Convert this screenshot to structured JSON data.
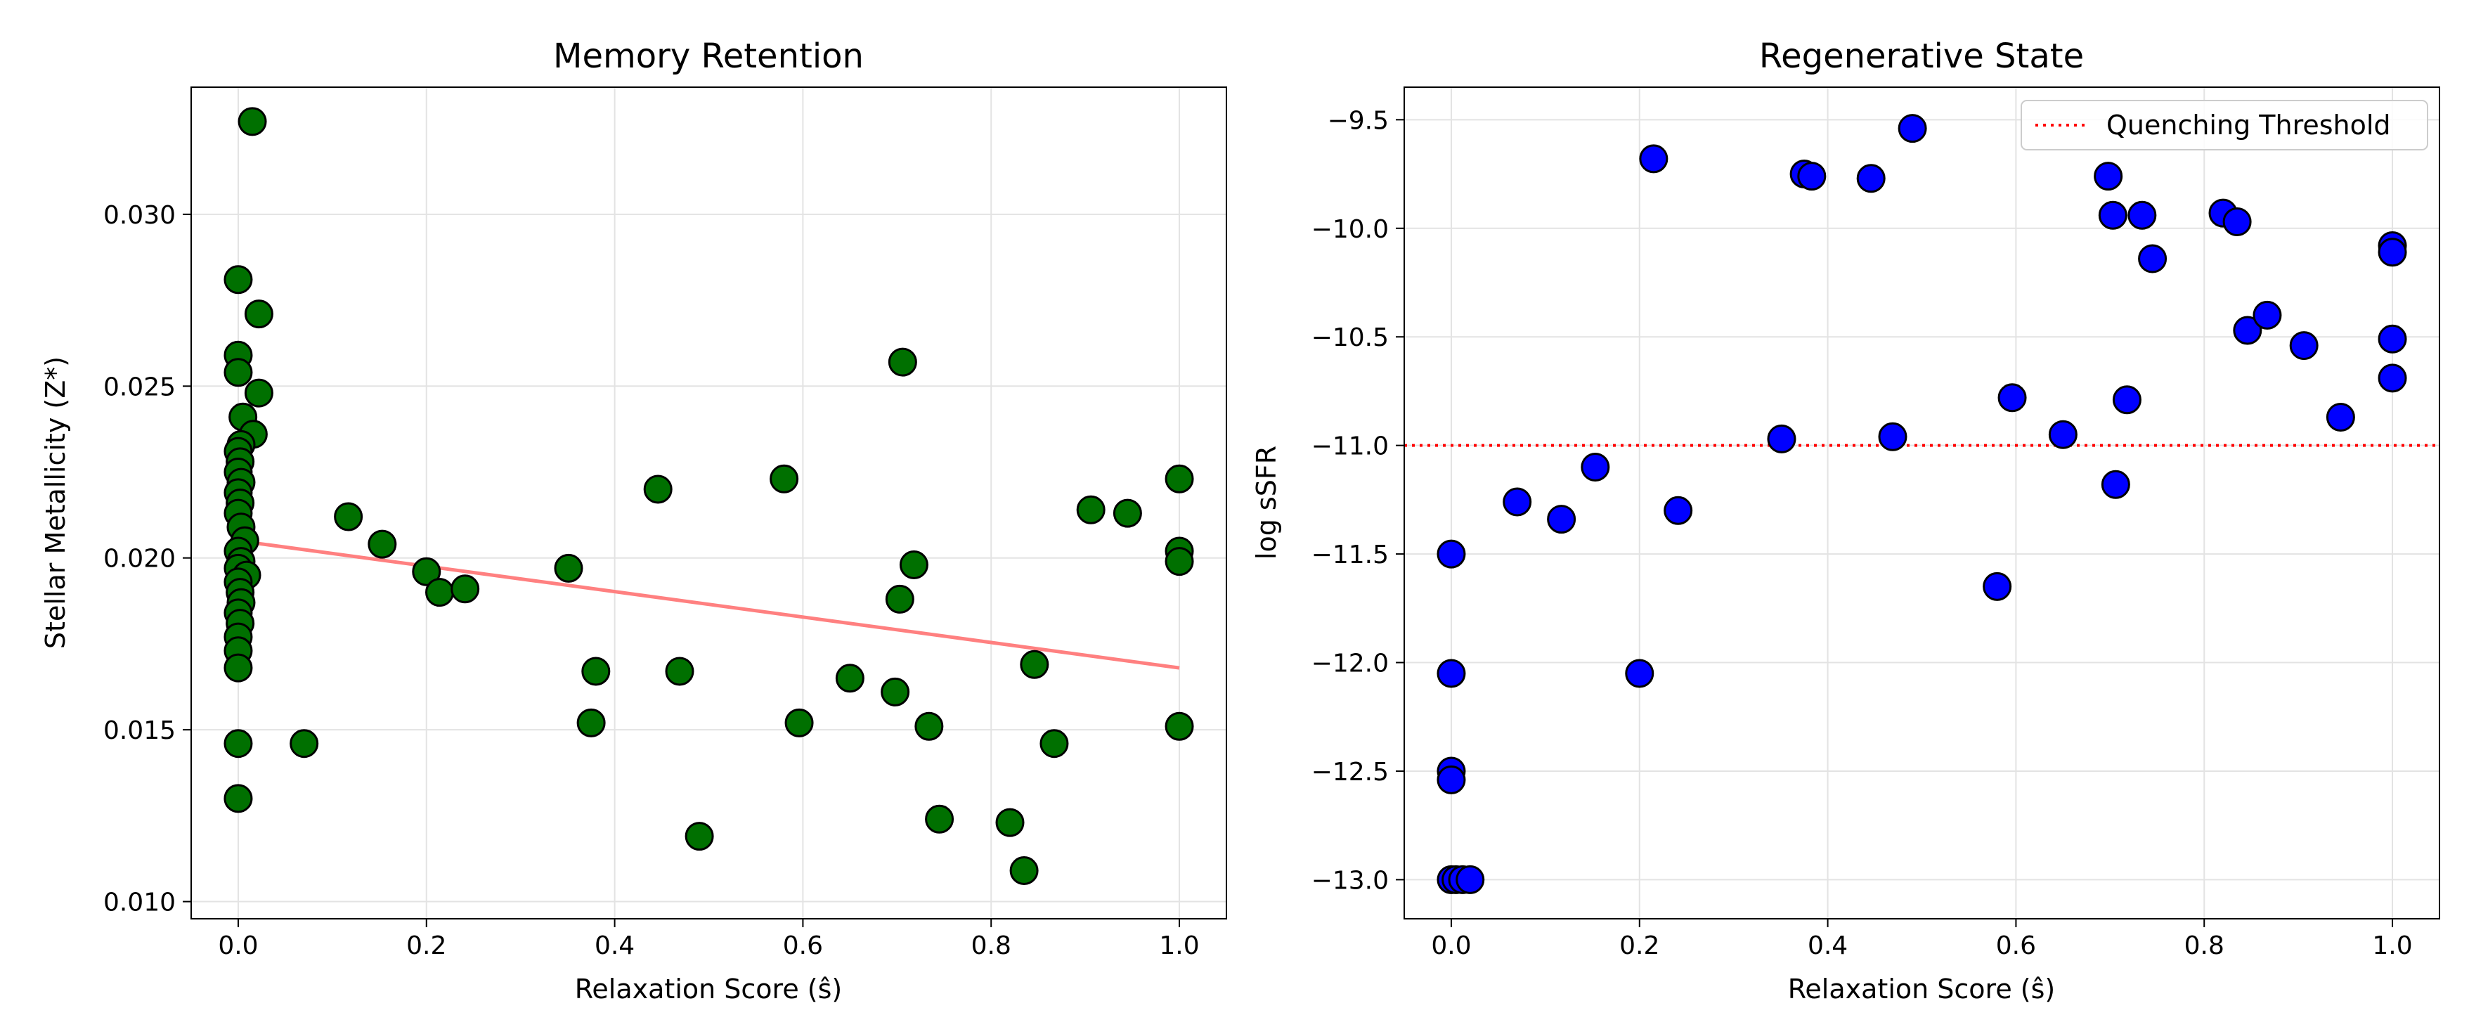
{
  "chart_data": [
    {
      "type": "scatter",
      "title": "Memory Retention",
      "xlabel": "Relaxation Score (ŝ)",
      "ylabel": "Stellar Metallicity (Z*)",
      "xlim": [
        -0.05,
        1.05
      ],
      "ylim": [
        0.0095,
        0.0337
      ],
      "xticks": [
        0.0,
        0.2,
        0.4,
        0.6,
        0.8,
        1.0
      ],
      "xtick_labels": [
        "0.0",
        "0.2",
        "0.4",
        "0.6",
        "0.8",
        "1.0"
      ],
      "yticks": [
        0.01,
        0.015,
        0.02,
        0.025,
        0.03
      ],
      "ytick_labels": [
        "0.010",
        "0.015",
        "0.020",
        "0.025",
        "0.030"
      ],
      "grid": true,
      "point_color": "#007000",
      "edge_color": "#000000",
      "trend_color": "#ff8080",
      "trend_line": {
        "x": [
          0.0,
          1.0
        ],
        "y": [
          0.0205,
          0.0168
        ]
      },
      "points": [
        {
          "x": 0.015,
          "y": 0.0327
        },
        {
          "x": 0.0,
          "y": 0.0281
        },
        {
          "x": 0.022,
          "y": 0.0271
        },
        {
          "x": 0.0,
          "y": 0.0259
        },
        {
          "x": 0.0,
          "y": 0.0254
        },
        {
          "x": 0.022,
          "y": 0.0248
        },
        {
          "x": 0.005,
          "y": 0.0241
        },
        {
          "x": 0.016,
          "y": 0.0236
        },
        {
          "x": 0.003,
          "y": 0.0233
        },
        {
          "x": 0.0,
          "y": 0.0231
        },
        {
          "x": 0.002,
          "y": 0.0228
        },
        {
          "x": 0.0,
          "y": 0.0225
        },
        {
          "x": 0.003,
          "y": 0.0222
        },
        {
          "x": 0.0,
          "y": 0.0219
        },
        {
          "x": 0.002,
          "y": 0.0216
        },
        {
          "x": 0.0,
          "y": 0.0213
        },
        {
          "x": 0.003,
          "y": 0.0209
        },
        {
          "x": 0.007,
          "y": 0.0205
        },
        {
          "x": 0.0,
          "y": 0.0202
        },
        {
          "x": 0.003,
          "y": 0.0199
        },
        {
          "x": 0.0,
          "y": 0.0197
        },
        {
          "x": 0.009,
          "y": 0.0195
        },
        {
          "x": 0.0,
          "y": 0.0193
        },
        {
          "x": 0.002,
          "y": 0.019
        },
        {
          "x": 0.003,
          "y": 0.0187
        },
        {
          "x": 0.0,
          "y": 0.0184
        },
        {
          "x": 0.002,
          "y": 0.0181
        },
        {
          "x": 0.0,
          "y": 0.0177
        },
        {
          "x": 0.0,
          "y": 0.0173
        },
        {
          "x": 0.0,
          "y": 0.0168
        },
        {
          "x": 0.0,
          "y": 0.0146
        },
        {
          "x": 0.0,
          "y": 0.013
        },
        {
          "x": 0.07,
          "y": 0.0146
        },
        {
          "x": 0.117,
          "y": 0.0212
        },
        {
          "x": 0.153,
          "y": 0.0204
        },
        {
          "x": 0.2,
          "y": 0.0196
        },
        {
          "x": 0.214,
          "y": 0.019
        },
        {
          "x": 0.241,
          "y": 0.0191
        },
        {
          "x": 0.351,
          "y": 0.0197
        },
        {
          "x": 0.375,
          "y": 0.0152
        },
        {
          "x": 0.38,
          "y": 0.0167
        },
        {
          "x": 0.446,
          "y": 0.022
        },
        {
          "x": 0.469,
          "y": 0.0167
        },
        {
          "x": 0.49,
          "y": 0.0119
        },
        {
          "x": 0.58,
          "y": 0.0223
        },
        {
          "x": 0.596,
          "y": 0.0152
        },
        {
          "x": 0.65,
          "y": 0.0165
        },
        {
          "x": 0.698,
          "y": 0.0161
        },
        {
          "x": 0.703,
          "y": 0.0188
        },
        {
          "x": 0.706,
          "y": 0.0257
        },
        {
          "x": 0.718,
          "y": 0.0198
        },
        {
          "x": 0.734,
          "y": 0.0151
        },
        {
          "x": 0.745,
          "y": 0.0124
        },
        {
          "x": 0.82,
          "y": 0.0123
        },
        {
          "x": 0.835,
          "y": 0.0109
        },
        {
          "x": 0.846,
          "y": 0.0169
        },
        {
          "x": 0.867,
          "y": 0.0146
        },
        {
          "x": 0.906,
          "y": 0.0214
        },
        {
          "x": 0.945,
          "y": 0.0213
        },
        {
          "x": 1.0,
          "y": 0.0223
        },
        {
          "x": 1.0,
          "y": 0.0202
        },
        {
          "x": 1.0,
          "y": 0.0199
        },
        {
          "x": 1.0,
          "y": 0.0151
        }
      ]
    },
    {
      "type": "scatter",
      "title": "Regenerative State",
      "xlabel": "Relaxation Score (ŝ)",
      "ylabel": "log sSFR",
      "xlim": [
        -0.05,
        1.05
      ],
      "ylim": [
        -13.18,
        -9.35
      ],
      "xticks": [
        0.0,
        0.2,
        0.4,
        0.6,
        0.8,
        1.0
      ],
      "xtick_labels": [
        "0.0",
        "0.2",
        "0.4",
        "0.6",
        "0.8",
        "1.0"
      ],
      "yticks": [
        -13.0,
        -12.5,
        -12.0,
        -11.5,
        -11.0,
        -10.5,
        -10.0,
        -9.5
      ],
      "ytick_labels": [
        "−13.0",
        "−12.5",
        "−12.0",
        "−11.5",
        "−11.0",
        "−10.5",
        "−10.0",
        "−9.5"
      ],
      "grid": true,
      "point_color": "#0000ff",
      "edge_color": "#000000",
      "threshold": {
        "y": -11.0,
        "label": "Quenching Threshold",
        "color": "#ff0000"
      },
      "legend_position": "top-right",
      "points": [
        {
          "x": 0.215,
          "y": -9.68
        },
        {
          "x": 0.375,
          "y": -9.75
        },
        {
          "x": 0.383,
          "y": -9.76
        },
        {
          "x": 0.446,
          "y": -9.77
        },
        {
          "x": 0.49,
          "y": -9.54
        },
        {
          "x": 0.698,
          "y": -9.76
        },
        {
          "x": 0.703,
          "y": -9.94
        },
        {
          "x": 0.734,
          "y": -9.94
        },
        {
          "x": 0.745,
          "y": -10.14
        },
        {
          "x": 0.82,
          "y": -9.93
        },
        {
          "x": 0.835,
          "y": -9.97
        },
        {
          "x": 0.846,
          "y": -10.47
        },
        {
          "x": 0.867,
          "y": -10.4
        },
        {
          "x": 0.906,
          "y": -10.54
        },
        {
          "x": 0.945,
          "y": -10.87
        },
        {
          "x": 1.0,
          "y": -10.08
        },
        {
          "x": 1.0,
          "y": -10.11
        },
        {
          "x": 1.0,
          "y": -10.51
        },
        {
          "x": 1.0,
          "y": -10.69
        },
        {
          "x": 0.596,
          "y": -10.78
        },
        {
          "x": 0.65,
          "y": -10.95
        },
        {
          "x": 0.718,
          "y": -10.79
        },
        {
          "x": 0.706,
          "y": -11.18
        },
        {
          "x": 0.58,
          "y": -11.65
        },
        {
          "x": 0.469,
          "y": -10.96
        },
        {
          "x": 0.351,
          "y": -10.97
        },
        {
          "x": 0.241,
          "y": -11.3
        },
        {
          "x": 0.2,
          "y": -12.05
        },
        {
          "x": 0.153,
          "y": -11.1
        },
        {
          "x": 0.117,
          "y": -11.34
        },
        {
          "x": 0.07,
          "y": -11.26
        },
        {
          "x": 0.0,
          "y": -11.5
        },
        {
          "x": 0.0,
          "y": -12.05
        },
        {
          "x": 0.0,
          "y": -12.5
        },
        {
          "x": 0.0,
          "y": -12.54
        },
        {
          "x": 0.0,
          "y": -13.0
        },
        {
          "x": 0.005,
          "y": -13.0
        },
        {
          "x": 0.012,
          "y": -13.0
        },
        {
          "x": 0.02,
          "y": -13.0
        }
      ]
    }
  ]
}
